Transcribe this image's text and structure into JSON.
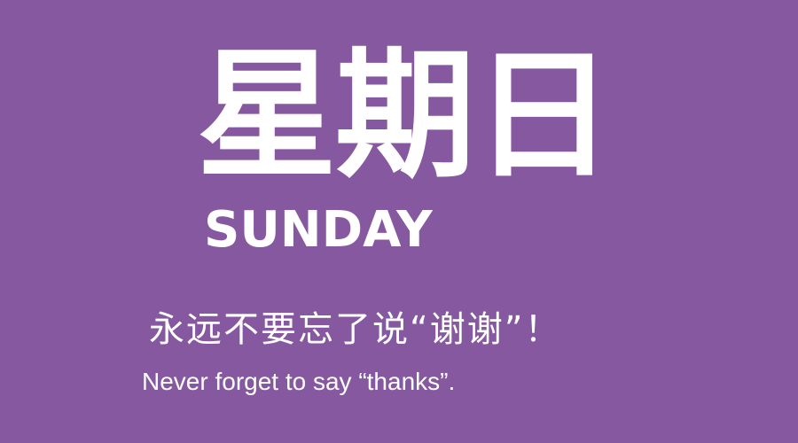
{
  "colors": {
    "background": "#8658a0",
    "text": "#ffffff"
  },
  "poster": {
    "title_cn": "星期日",
    "title_en": "SUNDAY",
    "quote_cn": "永远不要忘了说“谢谢”！",
    "quote_en": "Never forget to say “thanks”."
  }
}
